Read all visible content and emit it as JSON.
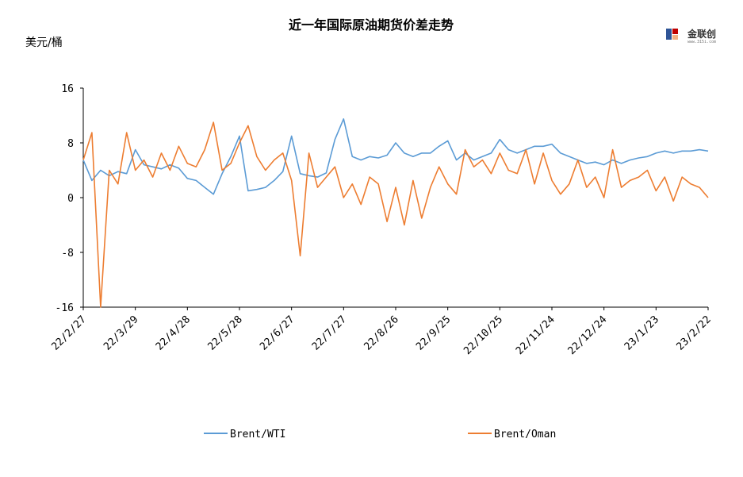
{
  "chart_data": {
    "type": "line",
    "title": "近一年国际原油期货价差走势",
    "ylabel": "美元/桶",
    "xlabel": "",
    "ylim": [
      -16,
      16
    ],
    "yticks": [
      "16",
      "8",
      "0",
      "-8",
      "-16"
    ],
    "x_tick_labels": [
      "22/2/27",
      "22/3/29",
      "22/4/28",
      "22/5/28",
      "22/6/27",
      "22/7/27",
      "22/8/26",
      "22/9/25",
      "22/10/25",
      "22/11/24",
      "22/12/24",
      "23/1/23",
      "23/2/22"
    ],
    "grid": false,
    "legend_position": "bottom",
    "colors": {
      "Brent/WTI": "#5b9bd5",
      "Brent/Oman": "#ed7d31"
    },
    "series": [
      {
        "name": "Brent/WTI",
        "x": [
          "22/2/27",
          "22/3/4",
          "22/3/9",
          "22/3/14",
          "22/3/19",
          "22/3/24",
          "22/3/29",
          "22/4/3",
          "22/4/8",
          "22/4/13",
          "22/4/18",
          "22/4/23",
          "22/4/28",
          "22/5/3",
          "22/5/8",
          "22/5/13",
          "22/5/18",
          "22/5/23",
          "22/5/28",
          "22/6/2",
          "22/6/7",
          "22/6/12",
          "22/6/17",
          "22/6/22",
          "22/6/27",
          "22/7/2",
          "22/7/7",
          "22/7/12",
          "22/7/17",
          "22/7/22",
          "22/7/27",
          "22/8/1",
          "22/8/6",
          "22/8/11",
          "22/8/16",
          "22/8/21",
          "22/8/26",
          "22/8/31",
          "22/9/5",
          "22/9/10",
          "22/9/15",
          "22/9/20",
          "22/9/25",
          "22/9/30",
          "22/10/5",
          "22/10/10",
          "22/10/15",
          "22/10/20",
          "22/10/25",
          "22/10/30",
          "22/11/4",
          "22/11/9",
          "22/11/14",
          "22/11/19",
          "22/11/24",
          "22/11/29",
          "22/12/4",
          "22/12/9",
          "22/12/14",
          "22/12/19",
          "22/12/24",
          "22/12/29",
          "23/1/3",
          "23/1/8",
          "23/1/13",
          "23/1/18",
          "23/1/23",
          "23/1/28",
          "23/2/2",
          "23/2/7",
          "23/2/12",
          "23/2/17",
          "23/2/22"
        ],
        "values": [
          5.5,
          2.5,
          4.0,
          3.2,
          3.8,
          3.5,
          7.0,
          4.8,
          4.5,
          4.2,
          4.8,
          4.3,
          2.8,
          2.5,
          1.5,
          0.5,
          3.5,
          6.0,
          9.0,
          1.0,
          1.2,
          1.5,
          2.5,
          3.8,
          9.0,
          3.5,
          3.2,
          3.0,
          3.6,
          8.5,
          11.5,
          6.0,
          5.5,
          6.0,
          5.8,
          6.2,
          8.0,
          6.5,
          6.0,
          6.5,
          6.5,
          7.5,
          8.3,
          5.5,
          6.5,
          5.5,
          6.0,
          6.5,
          8.5,
          7.0,
          6.5,
          7.0,
          7.5,
          7.5,
          7.8,
          6.5,
          6.0,
          5.5,
          5.0,
          5.2,
          4.8,
          5.5,
          5.0,
          5.5,
          5.8,
          6.0,
          6.5,
          6.8,
          6.5,
          6.8,
          6.8,
          7.0,
          6.8
        ]
      },
      {
        "name": "Brent/Oman",
        "x": [
          "22/2/27",
          "22/3/4",
          "22/3/9",
          "22/3/14",
          "22/3/19",
          "22/3/24",
          "22/3/29",
          "22/4/3",
          "22/4/8",
          "22/4/13",
          "22/4/18",
          "22/4/23",
          "22/4/28",
          "22/5/3",
          "22/5/8",
          "22/5/13",
          "22/5/18",
          "22/5/23",
          "22/5/28",
          "22/6/2",
          "22/6/7",
          "22/6/12",
          "22/6/17",
          "22/6/22",
          "22/6/27",
          "22/7/2",
          "22/7/7",
          "22/7/12",
          "22/7/17",
          "22/7/22",
          "22/7/27",
          "22/8/1",
          "22/8/6",
          "22/8/11",
          "22/8/16",
          "22/8/21",
          "22/8/26",
          "22/8/31",
          "22/9/5",
          "22/9/10",
          "22/9/15",
          "22/9/20",
          "22/9/25",
          "22/9/30",
          "22/10/5",
          "22/10/10",
          "22/10/15",
          "22/10/20",
          "22/10/25",
          "22/10/30",
          "22/11/4",
          "22/11/9",
          "22/11/14",
          "22/11/19",
          "22/11/24",
          "22/11/29",
          "22/12/4",
          "22/12/9",
          "22/12/14",
          "22/12/19",
          "22/12/24",
          "22/12/29",
          "23/1/3",
          "23/1/8",
          "23/1/13",
          "23/1/18",
          "23/1/23",
          "23/1/28",
          "23/2/2",
          "23/2/7",
          "23/2/12",
          "23/2/17",
          "23/2/22"
        ],
        "values": [
          5.5,
          9.5,
          -16.0,
          4.0,
          2.0,
          9.5,
          4.0,
          5.5,
          3.0,
          6.5,
          4.0,
          7.5,
          5.0,
          4.5,
          7.0,
          11.0,
          4.0,
          5.0,
          8.0,
          10.5,
          6.0,
          4.0,
          5.5,
          6.5,
          2.5,
          -8.5,
          6.5,
          1.5,
          3.0,
          4.5,
          0.0,
          2.0,
          -1.0,
          3.0,
          2.0,
          -3.5,
          1.5,
          -4.0,
          2.5,
          -3.0,
          1.5,
          4.5,
          2.0,
          0.5,
          7.0,
          4.5,
          5.5,
          3.5,
          6.5,
          4.0,
          3.5,
          7.0,
          2.0,
          6.5,
          2.5,
          0.5,
          2.0,
          5.5,
          1.5,
          3.0,
          0.0,
          7.0,
          1.5,
          2.5,
          3.0,
          4.0,
          1.0,
          3.0,
          -0.5,
          3.0,
          2.0,
          1.5,
          0.0
        ]
      }
    ]
  },
  "logo": {
    "text": "金联创",
    "subtext": "www.315i.com"
  }
}
